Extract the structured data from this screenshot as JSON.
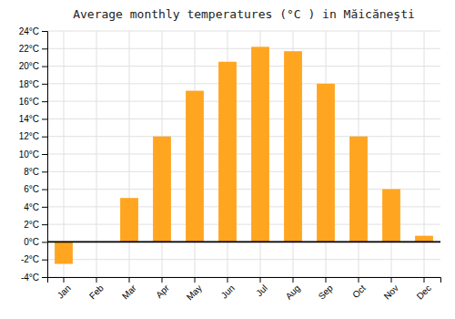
{
  "chart_data": {
    "type": "bar",
    "title": "Average monthly temperatures (°C ) in Măicăneşti",
    "categories": [
      "Jan",
      "Feb",
      "Mar",
      "Apr",
      "May",
      "Jun",
      "Jul",
      "Aug",
      "Sep",
      "Oct",
      "Nov",
      "Dec"
    ],
    "values": [
      -2.5,
      0.0,
      5.0,
      12.0,
      17.2,
      20.5,
      22.2,
      21.7,
      18.0,
      12.0,
      6.0,
      0.7
    ],
    "color": "#FFA520",
    "ylim": [
      -4,
      24
    ],
    "yticks": [
      {
        "value": -4,
        "label": "-4°C"
      },
      {
        "value": -2,
        "label": "-2°C"
      },
      {
        "value": 0,
        "label": "0°C"
      },
      {
        "value": 2,
        "label": "2°C"
      },
      {
        "value": 4,
        "label": "4°C"
      },
      {
        "value": 6,
        "label": "6°C"
      },
      {
        "value": 8,
        "label": "8°C"
      },
      {
        "value": 10,
        "label": "10°C"
      },
      {
        "value": 12,
        "label": "12°C"
      },
      {
        "value": 14,
        "label": "14°C"
      },
      {
        "value": 16,
        "label": "16°C"
      },
      {
        "value": 18,
        "label": "18°C"
      },
      {
        "value": 20,
        "label": "20°C"
      },
      {
        "value": 22,
        "label": "22°C"
      },
      {
        "value": 24,
        "label": "24°C"
      }
    ],
    "grid": true
  }
}
